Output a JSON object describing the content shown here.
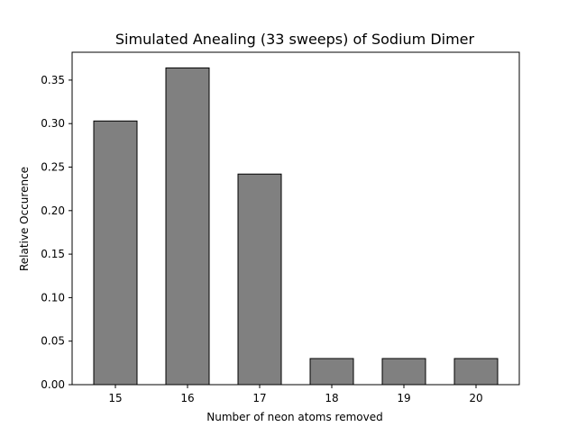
{
  "chart_data": {
    "type": "bar",
    "title": "Simulated Anealing (33 sweeps) of Sodium Dimer",
    "xlabel": "Number of neon atoms removed",
    "ylabel": "Relative Occurence",
    "categories": [
      "15",
      "16",
      "17",
      "18",
      "19",
      "20"
    ],
    "values": [
      0.303,
      0.364,
      0.242,
      0.03,
      0.03,
      0.03
    ],
    "ylim": [
      0,
      0.382
    ],
    "yticks": [
      0.0,
      0.05,
      0.1,
      0.15,
      0.2,
      0.25,
      0.3,
      0.35
    ],
    "ytick_labels": [
      "0.00",
      "0.05",
      "0.10",
      "0.15",
      "0.20",
      "0.25",
      "0.30",
      "0.35"
    ],
    "bar_color": "#808080",
    "edge_color": "#000000",
    "grid": false,
    "legend": "none"
  }
}
